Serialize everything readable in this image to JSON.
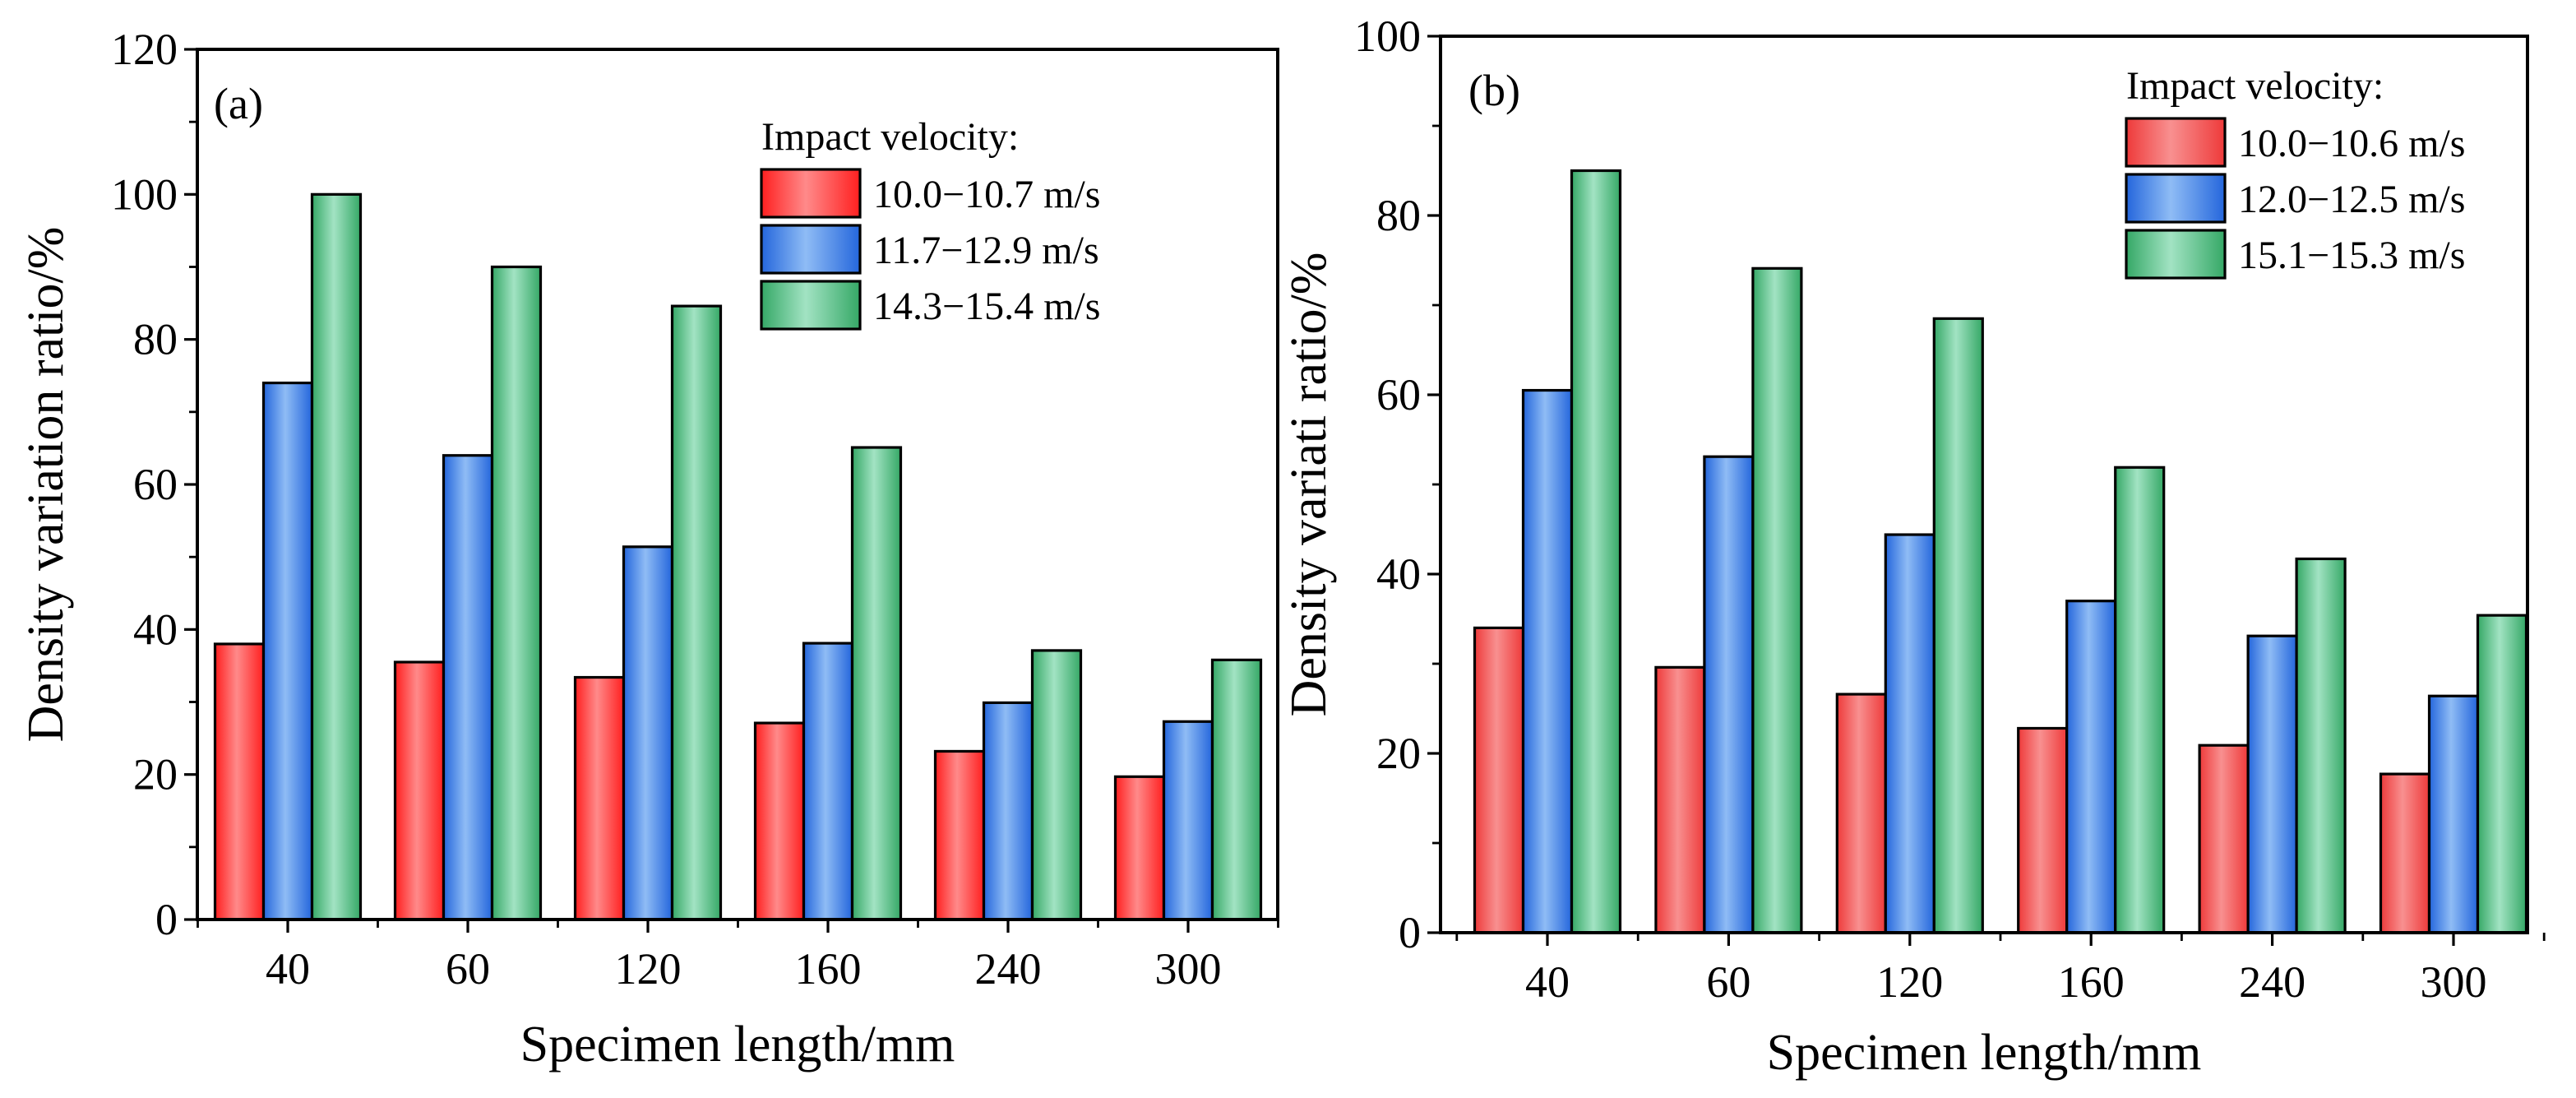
{
  "colors": {
    "red": {
      "edge": "#ff1f1f",
      "light": "#ff8a8a"
    },
    "blue": {
      "edge": "#2466dc",
      "light": "#8fbcf5"
    },
    "green": {
      "edge": "#35a866",
      "light": "#a2e3c3"
    },
    "red_b": {
      "edge": "#ee3a3a",
      "light": "#f89090"
    },
    "green_b": {
      "edge": "#35a866",
      "light": "#a2e3c3"
    }
  },
  "chart_data": [
    {
      "type": "bar",
      "panel_label": "(a)",
      "xlabel": "Specimen length/mm",
      "ylabel": "Density variation ratio/%",
      "categories": [
        "40",
        "60",
        "120",
        "160",
        "240",
        "300"
      ],
      "ylim": [
        0,
        120
      ],
      "yticks": [
        "0",
        "20",
        "40",
        "60",
        "80",
        "100",
        "120"
      ],
      "grid": false,
      "legend_title": "Impact velocity:",
      "legend_position": "top-right",
      "series": [
        {
          "name": "10.0−10.7 m/s",
          "color": "red",
          "values": [
            38.0,
            35.5,
            33.4,
            27.1,
            23.2,
            19.7
          ]
        },
        {
          "name": "11.7−12.9 m/s",
          "color": "blue",
          "values": [
            74.0,
            64.0,
            51.4,
            38.1,
            29.9,
            27.3
          ]
        },
        {
          "name": "14.3−15.4 m/s",
          "color": "green",
          "values": [
            100.0,
            90.0,
            84.6,
            65.1,
            37.1,
            35.8
          ]
        }
      ]
    },
    {
      "type": "bar",
      "panel_label": "(b)",
      "xlabel": "Specimen length/mm",
      "ylabel": "Density variati ratio/%",
      "categories": [
        "40",
        "60",
        "120",
        "160",
        "240",
        "300"
      ],
      "ylim": [
        0,
        100
      ],
      "yticks": [
        "0",
        "20",
        "40",
        "60",
        "80",
        "100"
      ],
      "grid": false,
      "legend_title": "Impact velocity:",
      "legend_position": "top-right",
      "series": [
        {
          "name": "10.0−10.6 m/s",
          "color": "red_b",
          "values": [
            34.0,
            29.6,
            26.6,
            22.8,
            20.9,
            17.7
          ]
        },
        {
          "name": "12.0−12.5 m/s",
          "color": "blue",
          "values": [
            60.5,
            53.1,
            44.4,
            37.0,
            33.1,
            26.4
          ]
        },
        {
          "name": "15.1−15.3 m/s",
          "color": "green_b",
          "values": [
            85.0,
            74.1,
            68.5,
            51.9,
            41.7,
            35.4
          ]
        }
      ]
    }
  ]
}
